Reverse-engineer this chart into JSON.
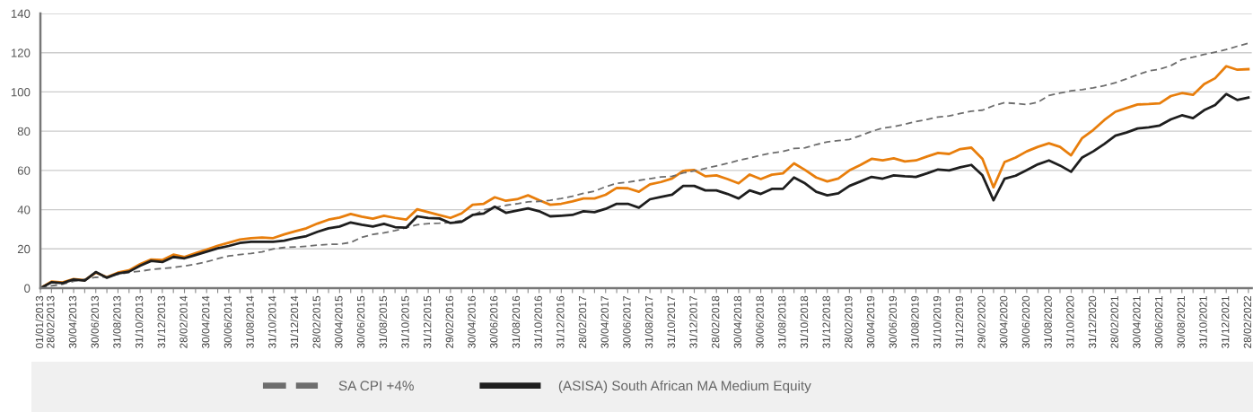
{
  "chart_data": {
    "type": "line",
    "categories": [
      "01/01/2013",
      "28/02/2013",
      null,
      "30/04/2013",
      null,
      "30/06/2013",
      null,
      "31/08/2013",
      null,
      "31/10/2013",
      null,
      "31/12/2013",
      null,
      "28/02/2014",
      null,
      "30/04/2014",
      null,
      "30/06/2014",
      null,
      "31/08/2014",
      null,
      "31/10/2014",
      null,
      "31/12/2014",
      null,
      "28/02/2015",
      null,
      "30/04/2015",
      null,
      "30/06/2015",
      null,
      "31/08/2015",
      null,
      "31/10/2015",
      null,
      "31/12/2015",
      null,
      "29/02/2016",
      null,
      "30/04/2016",
      null,
      "30/06/2016",
      null,
      "31/08/2016",
      null,
      "31/10/2016",
      null,
      "31/12/2016",
      null,
      "28/02/2017",
      null,
      "30/04/2017",
      null,
      "30/06/2017",
      null,
      "31/08/2017",
      null,
      "31/10/2017",
      null,
      "31/12/2017",
      null,
      "28/02/2018",
      null,
      "30/04/2018",
      null,
      "30/06/2018",
      null,
      "31/08/2018",
      null,
      "31/10/2018",
      null,
      "31/12/2018",
      null,
      "28/02/2019",
      null,
      "30/04/2019",
      null,
      "30/06/2019",
      null,
      "31/08/2019",
      null,
      "31/10/2019",
      null,
      "31/12/2019",
      null,
      "29/02/2020",
      null,
      "30/04/2020",
      null,
      "30/06/2020",
      null,
      "31/08/2020",
      null,
      "31/10/2020",
      null,
      "31/12/2020",
      null,
      "28/02/2021",
      null,
      "30/04/2021",
      null,
      "30/06/2021",
      null,
      "30/08/2021",
      null,
      "31/10/2021",
      null,
      "31/12/2021",
      null,
      "28/02/2022"
    ],
    "series": [
      {
        "color": "#e87e0c",
        "line_style": "solid",
        "values": [
          0,
          3.4,
          2.9,
          4.6,
          4.1,
          7.9,
          5.6,
          7.9,
          9.1,
          12.2,
          14.6,
          14.3,
          17.1,
          15.9,
          17.8,
          19.7,
          21.6,
          23.2,
          24.8,
          25.5,
          25.8,
          25.5,
          27.4,
          29,
          30.5,
          32.9,
          34.9,
          36,
          37.8,
          36.4,
          35.4,
          36.9,
          35.8,
          34.9,
          40.2,
          38.7,
          37.2,
          35.8,
          38.1,
          42.5,
          43,
          46.3,
          44.5,
          45.3,
          47.3,
          44.8,
          42.5,
          43,
          44.2,
          45.7,
          45.7,
          47.6,
          51.1,
          50.9,
          49.1,
          52.9,
          54.1,
          55.9,
          59.8,
          60.2,
          57,
          57.5,
          55.6,
          53.4,
          57.9,
          55.6,
          57.8,
          58.5,
          63.6,
          60.2,
          56.4,
          54.4,
          55.9,
          60,
          62.8,
          65.9,
          65.1,
          66.2,
          64.6,
          65.1,
          67.1,
          68.9,
          68.4,
          70.9,
          71.6,
          65.9,
          51.4,
          64.3,
          66.6,
          69.7,
          72,
          73.8,
          72,
          67.7,
          76.5,
          80.6,
          85.7,
          89.9,
          91.8,
          93.6,
          93.8,
          94.2,
          97.9,
          99.4,
          98.5,
          104,
          107,
          113.1,
          111.3,
          111.6
        ]
      },
      {
        "name": "SA CPI +4%",
        "color": "#6d6d6d",
        "line_style": "dashed",
        "values": [
          0,
          1.2,
          2,
          3.5,
          4.5,
          5.5,
          5.8,
          7,
          8,
          8.6,
          9.5,
          10,
          10.5,
          11.3,
          12.2,
          13.4,
          15,
          16.4,
          17.1,
          17.7,
          18.5,
          20,
          20.7,
          21,
          21.3,
          21.9,
          22.3,
          22.4,
          23.3,
          25.9,
          27.4,
          28.2,
          29.3,
          30.8,
          32.3,
          32.9,
          33.1,
          33.5,
          34.5,
          37,
          39.9,
          41,
          42.2,
          43,
          44,
          44.2,
          44.8,
          45.7,
          46.8,
          48.3,
          49.4,
          51.7,
          53.4,
          54,
          54.9,
          55.8,
          56.7,
          57,
          58.7,
          59.8,
          61,
          62.3,
          63.6,
          65.1,
          66.3,
          67.7,
          68.9,
          69.7,
          71.2,
          71.5,
          73.2,
          74.5,
          75.2,
          75.8,
          77.7,
          79.9,
          81.6,
          82.3,
          83.5,
          84.9,
          86,
          87.2,
          87.8,
          89,
          90.2,
          90.7,
          93,
          94.5,
          94.1,
          93.6,
          94.8,
          98.2,
          99.4,
          100.6,
          101.2,
          102.1,
          103.2,
          104.7,
          106.7,
          108.8,
          110.7,
          111.6,
          113.4,
          116.5,
          117.7,
          119.1,
          120.3,
          121.6,
          123.3,
          124.8
        ]
      },
      {
        "name": "(ASISA) South African MA Medium Equity",
        "color": "#1e1e1e",
        "line_style": "solid",
        "values": [
          0,
          3,
          2.6,
          4.4,
          3.8,
          8.2,
          5.3,
          7.5,
          8.4,
          11.4,
          13.9,
          13.3,
          15.9,
          15.2,
          16.9,
          18.6,
          20.3,
          21.5,
          23,
          23.6,
          23.6,
          23.6,
          24.2,
          25.5,
          26.5,
          28.7,
          30.5,
          31.4,
          33.5,
          32.3,
          31.4,
          32.8,
          31.1,
          30.8,
          36.6,
          35.7,
          35.5,
          33.2,
          33.8,
          37.3,
          38,
          41.5,
          38.4,
          39.5,
          40.7,
          39.2,
          36.6,
          36.9,
          37.3,
          39.2,
          38.7,
          40.4,
          43,
          43,
          41,
          45.3,
          46.5,
          47.6,
          52.1,
          52.1,
          49.8,
          49.8,
          48,
          45.7,
          49.8,
          48,
          50.6,
          50.6,
          56.4,
          53.4,
          49.1,
          47.3,
          48.3,
          52.1,
          54.4,
          56.7,
          55.8,
          57.5,
          57,
          56.7,
          58.5,
          60.5,
          60,
          61.6,
          62.8,
          57.5,
          44.8,
          55.8,
          57.3,
          60.2,
          63.1,
          65.1,
          62.5,
          59.3,
          66.6,
          69.7,
          73.5,
          77.7,
          79.3,
          81.4,
          82,
          82.9,
          86,
          88.1,
          86.6,
          90.7,
          93.3,
          98.9,
          95.9,
          97.1
        ]
      }
    ],
    "ylim": [
      0,
      140
    ],
    "yticks": [
      0,
      20,
      40,
      60,
      80,
      100,
      120,
      140
    ],
    "grid": "y",
    "legend": "bottom"
  }
}
